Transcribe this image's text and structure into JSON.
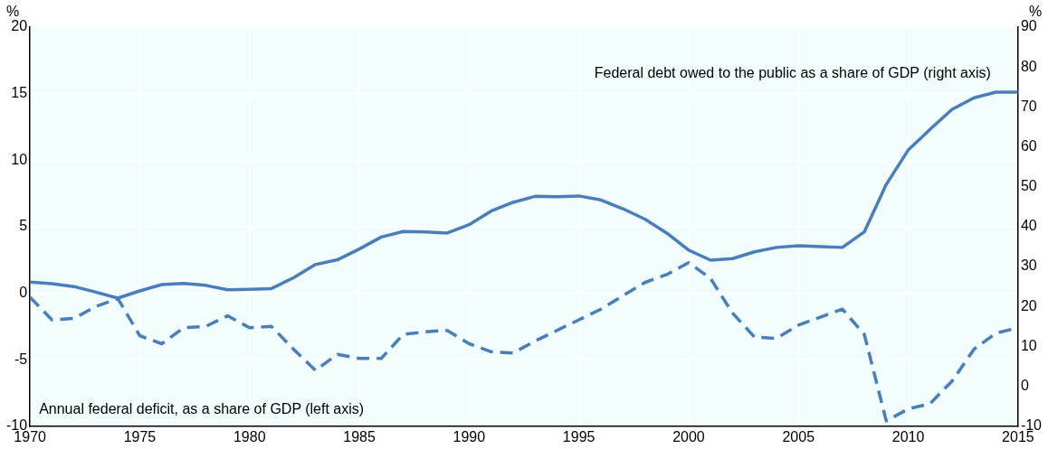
{
  "chart_data": {
    "type": "line",
    "ylabel": "%",
    "y2label": "%",
    "x": [
      1970,
      1971,
      1972,
      1973,
      1974,
      1975,
      1976,
      1977,
      1978,
      1979,
      1980,
      1981,
      1982,
      1983,
      1984,
      1985,
      1986,
      1987,
      1988,
      1989,
      1990,
      1991,
      1992,
      1993,
      1994,
      1995,
      1996,
      1997,
      1998,
      1999,
      2000,
      2001,
      2002,
      2003,
      2004,
      2005,
      2006,
      2007,
      2008,
      2009,
      2010,
      2011,
      2012,
      2013,
      2014,
      2015
    ],
    "xlim": [
      1970,
      2015
    ],
    "xticks": [
      1970,
      1975,
      1980,
      1985,
      1990,
      1995,
      2000,
      2005,
      2010,
      2015
    ],
    "ylim": [
      -10,
      20
    ],
    "yticks": [
      -10,
      -5,
      0,
      5,
      10,
      15,
      20
    ],
    "y2lim": [
      -10,
      90
    ],
    "y2ticks": [
      -10,
      0,
      10,
      20,
      30,
      40,
      50,
      60,
      70,
      80,
      90
    ],
    "grid": true,
    "legend": false,
    "marker": "none",
    "series": [
      {
        "name": "Federal debt owed to the public as a share of GDP (right axis)",
        "color": "#4a7ebb",
        "axis": "y2",
        "line_style": "solid",
        "values": [
          26.1,
          25.7,
          25.0,
          23.6,
          22.1,
          23.9,
          25.5,
          25.8,
          25.3,
          24.2,
          24.3,
          24.5,
          27.2,
          30.5,
          31.7,
          34.4,
          37.4,
          38.8,
          38.7,
          38.4,
          40.5,
          43.9,
          46.1,
          47.6,
          47.5,
          47.7,
          46.7,
          44.5,
          41.9,
          38.4,
          34.1,
          31.6,
          32.0,
          33.7,
          34.8,
          35.2,
          35.0,
          34.8,
          38.7,
          50.6,
          59.2,
          64.4,
          69.4,
          72.3,
          73.7,
          73.7
        ]
      },
      {
        "name": "Annual federal deficit, as a share of GDP (left axis)",
        "color": "#4a7ebb",
        "axis": "y",
        "line_style": "dashed",
        "values": [
          -0.3,
          -2.0,
          -1.9,
          -1.0,
          -0.4,
          -3.2,
          -3.8,
          -2.6,
          -2.5,
          -1.7,
          -2.6,
          -2.5,
          -4.2,
          -5.8,
          -4.6,
          -4.9,
          -4.9,
          -3.1,
          -2.9,
          -2.8,
          -3.8,
          -4.4,
          -4.5,
          -3.6,
          -2.8,
          -2.0,
          -1.2,
          -0.2,
          0.8,
          1.4,
          2.3,
          1.1,
          -1.5,
          -3.3,
          -3.4,
          -2.4,
          -1.8,
          -1.2,
          -3.1,
          -9.6,
          -8.7,
          -8.3,
          -6.6,
          -4.2,
          -3.0,
          -2.6
        ]
      }
    ]
  }
}
